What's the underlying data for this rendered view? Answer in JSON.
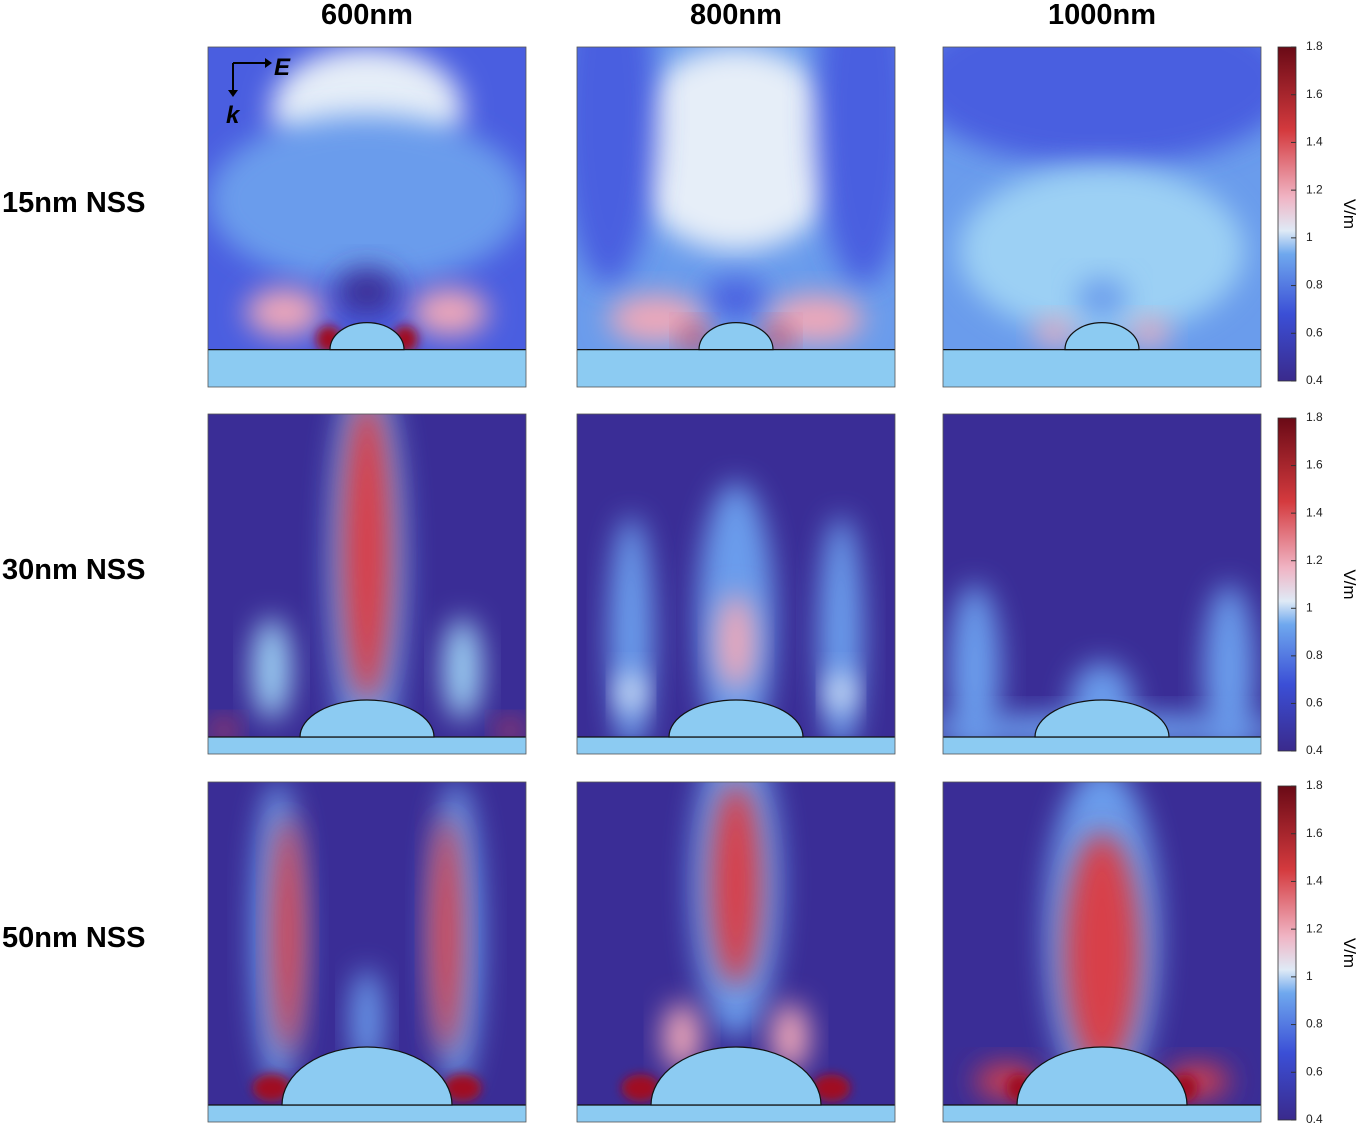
{
  "columns": [
    "600nm",
    "800nm",
    "1000nm"
  ],
  "rows": [
    "15nm NSS",
    "30nm NSS",
    "50nm NSS"
  ],
  "polarization": {
    "field": "E",
    "wavevector": "k"
  },
  "colorbar": {
    "unit": "V/m",
    "range": [
      0.4,
      1.8
    ],
    "ticks": [
      0.4,
      0.6,
      0.8,
      1,
      1.2,
      1.4,
      1.6,
      1.8
    ]
  }
}
